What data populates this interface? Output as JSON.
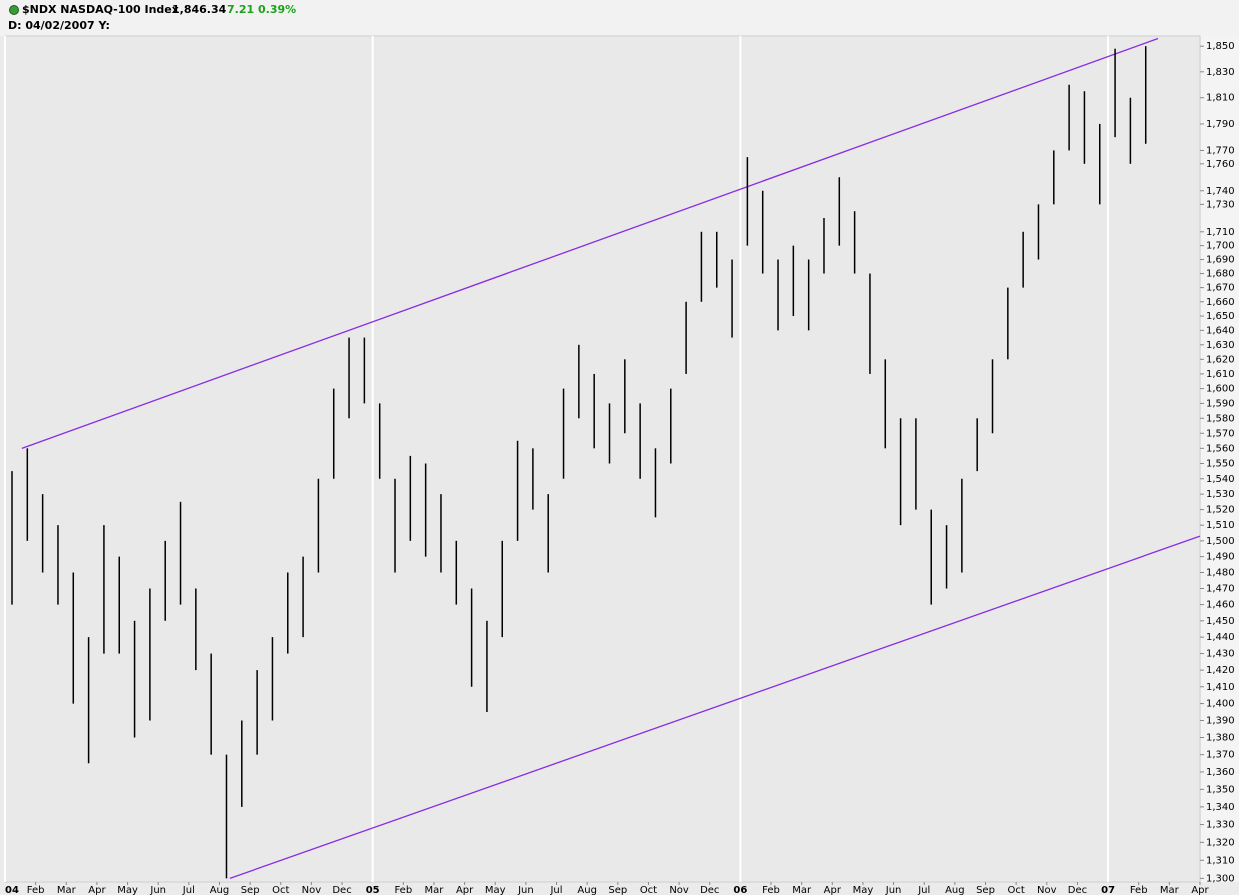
{
  "header": {
    "symbol": "$NDX NASDAQ-100 Index",
    "last": "1,846.34",
    "change": "7.21",
    "percent": "0.39%",
    "info": "D: 04/02/2007 Y:"
  },
  "chart_data": {
    "type": "ohlc",
    "log_scale": true,
    "color": "#000000",
    "x": [
      0,
      0.5,
      1,
      1.5,
      2,
      2.5,
      3,
      3.5,
      4,
      4.5,
      5,
      5.5,
      6,
      6.5,
      7,
      7.5,
      8,
      8.5,
      9,
      9.5,
      10,
      10.5,
      11,
      11.5,
      12,
      12.5,
      13,
      13.5,
      14,
      14.5,
      15,
      15.5,
      16,
      16.5,
      17,
      17.5,
      18,
      18.5,
      19,
      19.5,
      20,
      20.5,
      21,
      21.5,
      22,
      22.5,
      23,
      23.5,
      24,
      24.5,
      25,
      25.5,
      26,
      26.5,
      27,
      27.5,
      28,
      28.5,
      29,
      29.5,
      30,
      30.5,
      31,
      31.5,
      32,
      32.5,
      33,
      33.5,
      34,
      34.5,
      35,
      35.5,
      36,
      36.5,
      37
    ],
    "high": [
      1545,
      1560,
      1530,
      1510,
      1480,
      1440,
      1510,
      1490,
      1450,
      1470,
      1500,
      1525,
      1470,
      1430,
      1370,
      1390,
      1420,
      1440,
      1480,
      1490,
      1540,
      1600,
      1635,
      1635,
      1590,
      1540,
      1555,
      1550,
      1530,
      1500,
      1470,
      1450,
      1500,
      1565,
      1560,
      1530,
      1600,
      1630,
      1610,
      1590,
      1620,
      1590,
      1560,
      1600,
      1660,
      1710,
      1710,
      1690,
      1765,
      1740,
      1690,
      1700,
      1690,
      1720,
      1750,
      1725,
      1680,
      1620,
      1580,
      1580,
      1520,
      1510,
      1540,
      1580,
      1620,
      1670,
      1710,
      1730,
      1770,
      1820,
      1815,
      1790,
      1848,
      1810,
      1850
    ],
    "low": [
      1460,
      1500,
      1480,
      1460,
      1400,
      1365,
      1430,
      1430,
      1380,
      1390,
      1450,
      1460,
      1420,
      1370,
      1300,
      1340,
      1370,
      1390,
      1430,
      1440,
      1480,
      1540,
      1580,
      1590,
      1540,
      1480,
      1500,
      1490,
      1480,
      1460,
      1410,
      1395,
      1440,
      1500,
      1520,
      1480,
      1540,
      1580,
      1560,
      1550,
      1570,
      1540,
      1515,
      1550,
      1610,
      1660,
      1670,
      1635,
      1700,
      1680,
      1640,
      1650,
      1640,
      1680,
      1700,
      1680,
      1610,
      1560,
      1510,
      1520,
      1460,
      1470,
      1480,
      1545,
      1570,
      1620,
      1670,
      1690,
      1730,
      1770,
      1760,
      1730,
      1780,
      1760,
      1775
    ],
    "trendlines": [
      {
        "color": "#8a2be2",
        "x": [
          0.55,
          37.63
        ],
        "y": [
          1560,
          1856
        ]
      },
      {
        "color": "#8a2be2",
        "x": [
          7.34,
          39
        ],
        "y": [
          1300,
          1503
        ]
      }
    ],
    "xlim": [
      0,
      39
    ],
    "ylim": [
      1298,
      1858
    ],
    "xticks": [
      {
        "value": 0,
        "label": "04"
      },
      {
        "value": 1,
        "label": "Feb"
      },
      {
        "value": 2,
        "label": "Mar"
      },
      {
        "value": 3,
        "label": "Apr"
      },
      {
        "value": 4,
        "label": "May"
      },
      {
        "value": 5,
        "label": "Jun"
      },
      {
        "value": 6,
        "label": "Jul"
      },
      {
        "value": 7,
        "label": "Aug"
      },
      {
        "value": 8,
        "label": "Sep"
      },
      {
        "value": 9,
        "label": "Oct"
      },
      {
        "value": 10,
        "label": "Nov"
      },
      {
        "value": 11,
        "label": "Dec"
      },
      {
        "value": 12,
        "label": "05"
      },
      {
        "value": 13,
        "label": "Feb"
      },
      {
        "value": 14,
        "label": "Mar"
      },
      {
        "value": 15,
        "label": "Apr"
      },
      {
        "value": 16,
        "label": "May"
      },
      {
        "value": 17,
        "label": "Jun"
      },
      {
        "value": 18,
        "label": "Jul"
      },
      {
        "value": 19,
        "label": "Aug"
      },
      {
        "value": 20,
        "label": "Sep"
      },
      {
        "value": 21,
        "label": "Oct"
      },
      {
        "value": 22,
        "label": "Nov"
      },
      {
        "value": 23,
        "label": "Dec"
      },
      {
        "value": 24,
        "label": "06"
      },
      {
        "value": 25,
        "label": "Feb"
      },
      {
        "value": 26,
        "label": "Mar"
      },
      {
        "value": 27,
        "label": "Apr"
      },
      {
        "value": 28,
        "label": "May"
      },
      {
        "value": 29,
        "label": "Jun"
      },
      {
        "value": 30,
        "label": "Jul"
      },
      {
        "value": 31,
        "label": "Aug"
      },
      {
        "value": 32,
        "label": "Sep"
      },
      {
        "value": 33,
        "label": "Oct"
      },
      {
        "value": 34,
        "label": "Nov"
      },
      {
        "value": 35,
        "label": "Dec"
      },
      {
        "value": 36,
        "label": "07"
      },
      {
        "value": 37,
        "label": "Feb"
      },
      {
        "value": 38,
        "label": "Mar"
      },
      {
        "value": 39,
        "label": "Apr"
      }
    ],
    "yticks": [
      {
        "value": 1850,
        "label": "1,850"
      },
      {
        "value": 1830,
        "label": "1,830"
      },
      {
        "value": 1810,
        "label": "1,810"
      },
      {
        "value": 1790,
        "label": "1,790"
      },
      {
        "value": 1770,
        "label": "1,770"
      },
      {
        "value": 1760,
        "label": "1,760"
      },
      {
        "value": 1740,
        "label": "1,740"
      },
      {
        "value": 1730,
        "label": "1,730"
      },
      {
        "value": 1710,
        "label": "1,710"
      },
      {
        "value": 1700,
        "label": "1,700"
      },
      {
        "value": 1690,
        "label": "1,690"
      },
      {
        "value": 1680,
        "label": "1,680"
      },
      {
        "value": 1670,
        "label": "1,670"
      },
      {
        "value": 1660,
        "label": "1,660"
      },
      {
        "value": 1650,
        "label": "1,650"
      },
      {
        "value": 1640,
        "label": "1,640"
      },
      {
        "value": 1630,
        "label": "1,630"
      },
      {
        "value": 1620,
        "label": "1,620"
      },
      {
        "value": 1610,
        "label": "1,610"
      },
      {
        "value": 1600,
        "label": "1,600"
      },
      {
        "value": 1590,
        "label": "1,590"
      },
      {
        "value": 1580,
        "label": "1,580"
      },
      {
        "value": 1570,
        "label": "1,570"
      },
      {
        "value": 1560,
        "label": "1,560"
      },
      {
        "value": 1550,
        "label": "1,550"
      },
      {
        "value": 1540,
        "label": "1,540"
      },
      {
        "value": 1530,
        "label": "1,530"
      },
      {
        "value": 1520,
        "label": "1,520"
      },
      {
        "value": 1510,
        "label": "1,510"
      },
      {
        "value": 1500,
        "label": "1,500"
      },
      {
        "value": 1490,
        "label": "1,490"
      },
      {
        "value": 1480,
        "label": "1,480"
      },
      {
        "value": 1470,
        "label": "1,470"
      },
      {
        "value": 1460,
        "label": "1,460"
      },
      {
        "value": 1450,
        "label": "1,450"
      },
      {
        "value": 1440,
        "label": "1,440"
      },
      {
        "value": 1430,
        "label": "1,430"
      },
      {
        "value": 1420,
        "label": "1,420"
      },
      {
        "value": 1410,
        "label": "1,410"
      },
      {
        "value": 1400,
        "label": "1,400"
      },
      {
        "value": 1390,
        "label": "1,390"
      },
      {
        "value": 1380,
        "label": "1,380"
      },
      {
        "value": 1370,
        "label": "1,370"
      },
      {
        "value": 1360,
        "label": "1,360"
      },
      {
        "value": 1350,
        "label": "1,350"
      },
      {
        "value": 1340,
        "label": "1,340"
      },
      {
        "value": 1330,
        "label": "1,330"
      },
      {
        "value": 1320,
        "label": "1,320"
      },
      {
        "value": 1310,
        "label": "1,310"
      },
      {
        "value": 1300,
        "label": "1,300"
      }
    ]
  }
}
